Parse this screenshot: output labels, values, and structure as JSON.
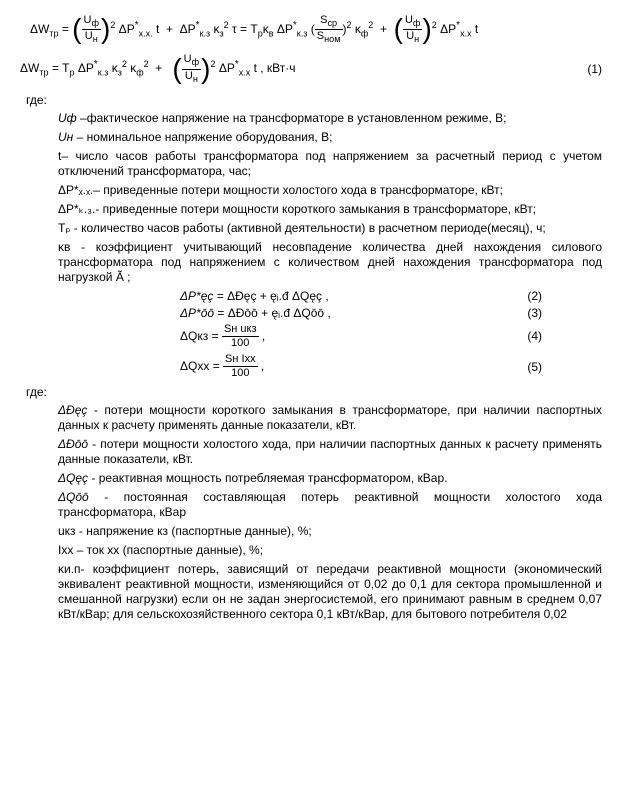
{
  "eq1_line1": "ΔWₜₚ = (Uф/Uн)² ΔP*ₓ.ₓ. t  +  ΔP*ₖ.₃ κ²₃ τ = Tₚκв ΔP*ₖ.₃ (Sср/Sном)² κ²ф  +  (Uф/Uн)² ΔP*ₓ.ₓ t",
  "eq2_text": "ΔWтр = Tₚ ΔP*ₖ.₃ κ²₃ κ²ф  +  (Uф/Uн)² ΔP*ₓ.ₓ t , кВт·ч",
  "eq2_num": "(1)",
  "where": "где:",
  "defs1": {
    "d1_sym": "Uф",
    "d1_text": " –фактическое напряжение на трансформаторе в установленном режиме, В;",
    "d2_sym": "Uн",
    "d2_text": " – номинальное напряжение оборудования, В;",
    "d3_text": "t– число часов работы трансформатора под напряжением за расчетный период с учетом отключений трансформатора, час;",
    "d4_text": "ΔР*ₓ.ₓ.– приведенные потери мощности холостого хода в трансформаторе, кВт;",
    "d5_text": "ΔР*ₖ.₃.- приведенные потери мощности короткого замыкания в трансформаторе, кВт;",
    "d6_text": "Tₚ - количество часов работы (активной деятельности) в расчетном периоде(месяц), ч;",
    "d7_text": "κв - коэффициент учитывающий несовпадение количества дней нахождения силового трансформатора под напряжением с количеством дней нахождения трансформатора под нагрузкой  Ã ;"
  },
  "short_eqs": {
    "e2_lhs": "ΔP*ęç",
    "e2_rhs": " = ΔÐęç + ęᵢ.đ ΔQęç ,",
    "e2_num": "(2)",
    "e3_lhs": "ΔP*ōō",
    "e3_rhs": " = ΔÐōō + ęᵢ.đ ΔQōō ,",
    "e3_num": "(3)",
    "e4_lhs": "ΔQкз",
    "e4_rhs_n": "Sн uкз",
    "e4_rhs_d": "100",
    "e4_num": "(4)",
    "e5_lhs": "ΔQxx",
    "e5_rhs_n": "Sн Ixx",
    "e5_rhs_d": "100",
    "e5_num": "(5)"
  },
  "defs2": {
    "d1_sym": "ΔÐęç",
    "d1_text": " - потери мощности короткого замыкания в трансформаторе, при наличии паспортных данных к расчету применять данные показатели, кВт.",
    "d2_sym": "ΔÐōō",
    "d2_text": " - потери мощности холостого хода, при наличии паспортных данных к расчету применять данные показатели, кВт.",
    "d3_sym": "ΔQęç",
    "d3_text": " - реактивная мощность потребляемая трансформатором, кВар.",
    "d4_sym": "ΔQōō",
    "d4_text": " - постоянная составляющая потерь реактивной мощности холостого хода трансформатора, кВар",
    "d5_sym": "uкз",
    "d5_text": " - напряжение кз (паспортные данные), %;",
    "d6_sym": "Ixx",
    "d6_text": "  – ток хх (паспортные данные), %;",
    "d7_sym": "κи.п",
    "d7_text": "- коэффициент потерь, зависящий от передачи реактивной мощности (экономический эквивалент реактивной мощности, изменяющийся от 0,02 до 0,1 для сектора промышленной и смешанной нагрузки) если он не задан энергосистемой, его принимают равным в среднем 0,07 кВт/кВар; для сельскохозяйственного сектора 0,1 кВт/кВар, для бытового потребителя 0,02"
  }
}
